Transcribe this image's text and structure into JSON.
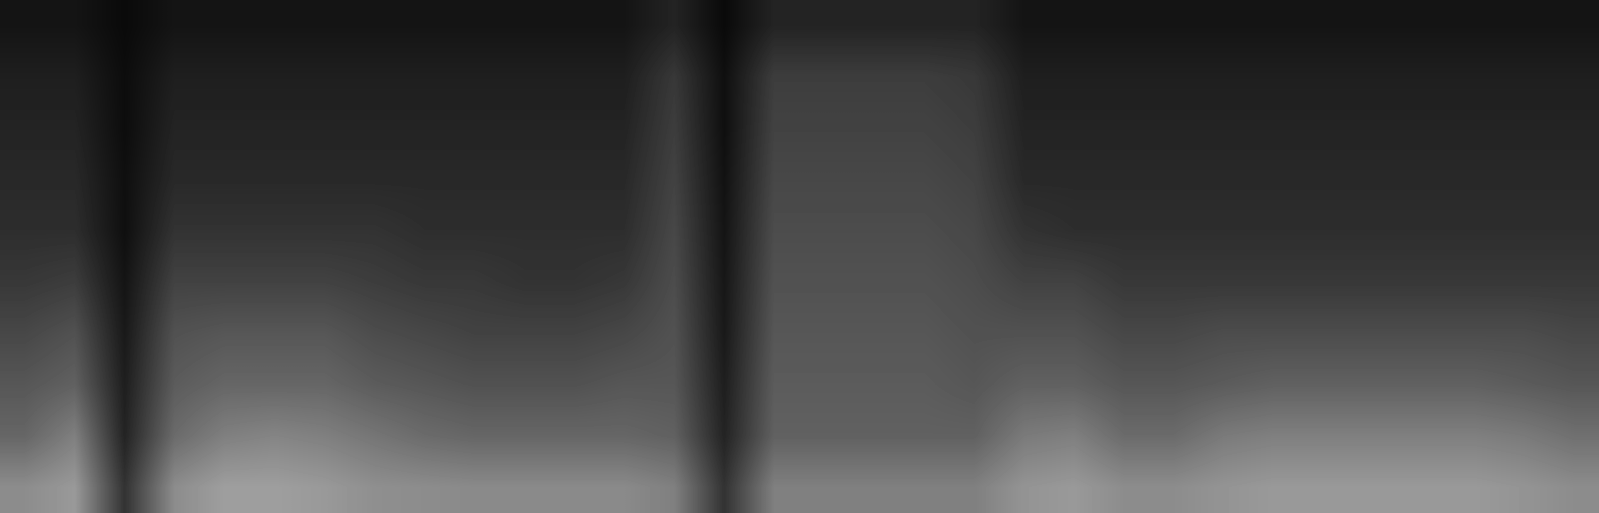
{
  "chart_data": {
    "type": "heatmap",
    "color": "gray",
    "tick_labels": false,
    "cell_range": [
      0,
      100
    ],
    "cells": [
      [
        8,
        8,
        4,
        8,
        8,
        8,
        8,
        8,
        8,
        8,
        8,
        8,
        8,
        14,
        4,
        14,
        14,
        14,
        14,
        14,
        8,
        8,
        8,
        8,
        8,
        8,
        8,
        8,
        8,
        8,
        8,
        8
      ],
      [
        12,
        12,
        5,
        12,
        12,
        12,
        12,
        12,
        12,
        12,
        12,
        12,
        12,
        22,
        6,
        24,
        24,
        24,
        24,
        22,
        12,
        12,
        12,
        12,
        12,
        12,
        12,
        12,
        12,
        12,
        12,
        12
      ],
      [
        14,
        14,
        5,
        14,
        14,
        14,
        14,
        14,
        14,
        14,
        14,
        14,
        14,
        24,
        6,
        26,
        26,
        26,
        26,
        24,
        14,
        14,
        14,
        14,
        14,
        14,
        14,
        14,
        14,
        14,
        14,
        14
      ],
      [
        16,
        16,
        6,
        16,
        16,
        16,
        16,
        16,
        16,
        16,
        16,
        16,
        16,
        26,
        7,
        28,
        28,
        28,
        28,
        26,
        16,
        16,
        16,
        16,
        16,
        16,
        16,
        16,
        16,
        16,
        16,
        16
      ],
      [
        18,
        18,
        6,
        20,
        20,
        20,
        20,
        20,
        18,
        18,
        18,
        18,
        18,
        28,
        8,
        30,
        30,
        30,
        30,
        28,
        20,
        18,
        18,
        18,
        18,
        18,
        18,
        18,
        18,
        18,
        18,
        18
      ],
      [
        22,
        24,
        8,
        26,
        26,
        26,
        26,
        24,
        22,
        22,
        20,
        20,
        22,
        30,
        9,
        32,
        32,
        32,
        32,
        30,
        26,
        26,
        22,
        22,
        22,
        22,
        22,
        22,
        22,
        22,
        22,
        22
      ],
      [
        28,
        32,
        10,
        32,
        34,
        34,
        34,
        30,
        28,
        26,
        26,
        26,
        28,
        32,
        10,
        34,
        34,
        34,
        34,
        32,
        32,
        32,
        28,
        28,
        30,
        30,
        30,
        30,
        30,
        30,
        30,
        28
      ],
      [
        34,
        38,
        12,
        36,
        40,
        40,
        40,
        36,
        34,
        32,
        32,
        32,
        34,
        34,
        12,
        36,
        36,
        36,
        36,
        34,
        38,
        38,
        34,
        34,
        36,
        38,
        38,
        38,
        38,
        38,
        36,
        34
      ],
      [
        40,
        50,
        14,
        42,
        50,
        52,
        50,
        46,
        42,
        40,
        40,
        40,
        40,
        38,
        14,
        38,
        38,
        38,
        38,
        38,
        48,
        50,
        42,
        42,
        48,
        50,
        50,
        50,
        50,
        50,
        48,
        44
      ],
      [
        55,
        60,
        20,
        55,
        62,
        62,
        60,
        56,
        55,
        54,
        54,
        54,
        54,
        50,
        20,
        50,
        50,
        50,
        50,
        50,
        58,
        60,
        55,
        55,
        58,
        60,
        60,
        60,
        60,
        60,
        58,
        55
      ]
    ]
  }
}
